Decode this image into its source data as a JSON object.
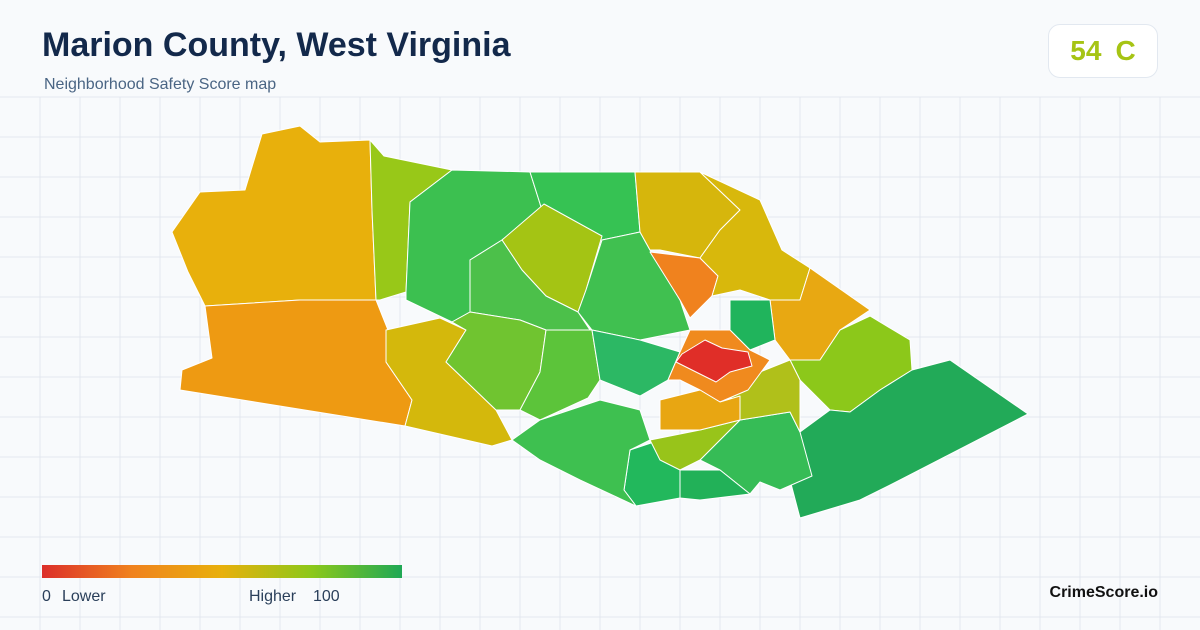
{
  "header": {
    "title": "Marion County, West Virginia",
    "subtitle": "Neighborhood Safety Score map"
  },
  "score": {
    "value": "54",
    "grade": "C"
  },
  "legend": {
    "min": "0",
    "min_label": "Lower",
    "max_label": "Higher",
    "max": "100"
  },
  "footer": {
    "brand": "CrimeScore.io"
  }
}
